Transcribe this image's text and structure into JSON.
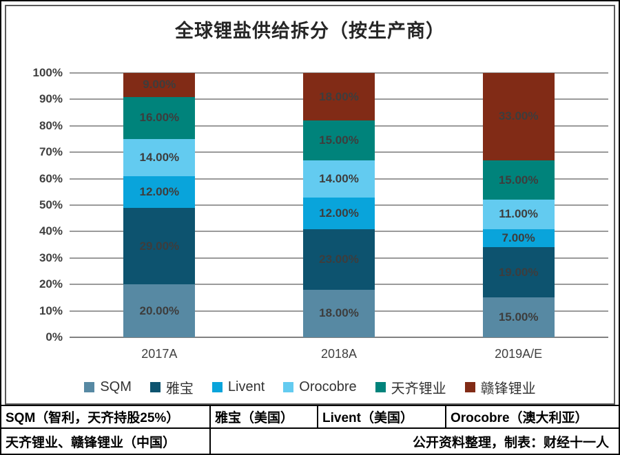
{
  "title": "全球锂盐供给拆分（按生产商）",
  "chart_data": {
    "type": "bar",
    "stacked": true,
    "title": "全球锂盐供给拆分（按生产商）",
    "categories": [
      "2017A",
      "2018A",
      "2019A/E"
    ],
    "series": [
      {
        "name": "SQM",
        "color": "#5789A3",
        "values": [
          20,
          18,
          15
        ],
        "labels": [
          "20.00%",
          "18.00%",
          "15.00%"
        ]
      },
      {
        "name": "雅宝",
        "color": "#0D536F",
        "values": [
          29,
          23,
          19
        ],
        "labels": [
          "29.00%",
          "23.00%",
          "19.00%"
        ]
      },
      {
        "name": "Livent",
        "color": "#09A4DB",
        "values": [
          12,
          12,
          7
        ],
        "labels": [
          "12.00%",
          "12.00%",
          "7.00%"
        ]
      },
      {
        "name": "Orocobre",
        "color": "#63CBF0",
        "values": [
          14,
          14,
          11
        ],
        "labels": [
          "14.00%",
          "14.00%",
          "11.00%"
        ]
      },
      {
        "name": "天齐锂业",
        "color": "#00837B",
        "values": [
          16,
          15,
          15
        ],
        "labels": [
          "16.00%",
          "15.00%",
          "15.00%"
        ]
      },
      {
        "name": "赣锋锂业",
        "color": "#812B16",
        "values": [
          9,
          18,
          33
        ],
        "labels": [
          "9.00%",
          "18.00%",
          "33.00%"
        ]
      }
    ],
    "ylim": [
      0,
      100
    ],
    "yticks": [
      {
        "value": 0,
        "label": "0%"
      },
      {
        "value": 10,
        "label": "10%"
      },
      {
        "value": 20,
        "label": "20%"
      },
      {
        "value": 30,
        "label": "30%"
      },
      {
        "value": 40,
        "label": "40%"
      },
      {
        "value": 50,
        "label": "50%"
      },
      {
        "value": 60,
        "label": "60%"
      },
      {
        "value": 70,
        "label": "70%"
      },
      {
        "value": 80,
        "label": "80%"
      },
      {
        "value": 90,
        "label": "90%"
      },
      {
        "value": 100,
        "label": "100%"
      }
    ],
    "grid": true,
    "legend_position": "bottom"
  },
  "footer": {
    "row1": [
      "SQM（智利，天齐持股25%）",
      "雅宝（美国）",
      "Livent（美国）",
      "Orocobre（澳大利亚）"
    ],
    "row2_left": "天齐锂业、赣锋锂业（中国）",
    "row2_right": "公开资料整理，制表：财经十一人"
  }
}
